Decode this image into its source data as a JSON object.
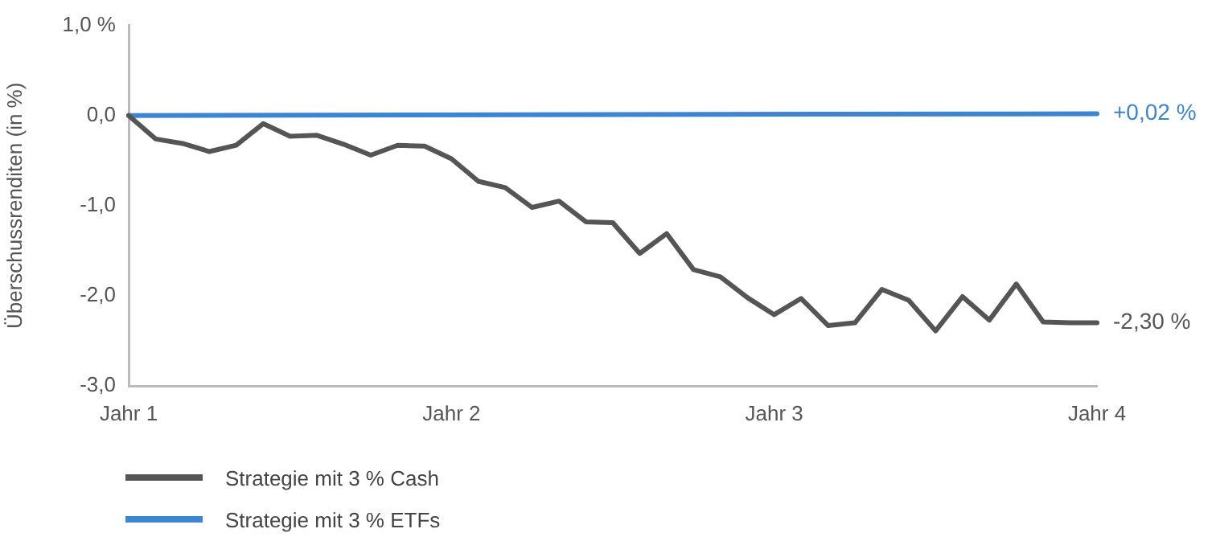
{
  "chart_data": {
    "type": "line",
    "ylabel": "Überschussrenditen (in %)",
    "categories": [
      "Jahr 1",
      null,
      null,
      null,
      null,
      null,
      null,
      null,
      null,
      null,
      null,
      null,
      "Jahr 2",
      null,
      null,
      null,
      null,
      null,
      null,
      null,
      null,
      null,
      null,
      null,
      "Jahr 3",
      null,
      null,
      null,
      null,
      null,
      null,
      null,
      null,
      null,
      null,
      null,
      "Jahr 4"
    ],
    "ylim": [
      -3,
      1
    ],
    "yticks": [
      {
        "value": 1,
        "label": "1,0 %"
      },
      {
        "value": 0,
        "label": "0,0"
      },
      {
        "value": -1,
        "label": "-1,0"
      },
      {
        "value": -2,
        "label": "-2,0"
      },
      {
        "value": -3,
        "label": "-3,0"
      }
    ],
    "grid": false,
    "legend": "bottom",
    "marker": "none",
    "line_style": "solid",
    "series": [
      {
        "name": "Strategie mit 3 % Cash",
        "color": "#555555",
        "values": [
          0,
          -0.26,
          -0.31,
          -0.4,
          -0.33,
          -0.09,
          -0.23,
          -0.22,
          -0.32,
          -0.44,
          -0.33,
          -0.34,
          -0.48,
          -0.73,
          -0.8,
          -1.02,
          -0.95,
          -1.18,
          -1.19,
          -1.53,
          -1.31,
          -1.71,
          -1.79,
          -2.02,
          -2.21,
          -2.03,
          -2.33,
          -2.3,
          -1.93,
          -2.05,
          -2.39,
          -2.01,
          -2.27,
          -1.87,
          -2.29,
          -2.3,
          -2.3
        ],
        "value_labels": [
          null,
          null,
          null,
          null,
          null,
          null,
          null,
          null,
          null,
          null,
          null,
          null,
          null,
          null,
          null,
          null,
          null,
          null,
          null,
          null,
          null,
          null,
          null,
          null,
          null,
          null,
          null,
          null,
          null,
          null,
          null,
          null,
          null,
          null,
          null,
          null,
          "-2,30 %"
        ]
      },
      {
        "name": "Strategie mit 3 % ETFs",
        "color": "#3d85d0",
        "values": [
          0,
          null,
          null,
          null,
          null,
          null,
          null,
          null,
          null,
          null,
          null,
          null,
          null,
          null,
          null,
          null,
          null,
          null,
          null,
          null,
          null,
          null,
          null,
          null,
          null,
          null,
          null,
          null,
          null,
          null,
          null,
          null,
          null,
          null,
          null,
          null,
          0.02
        ],
        "value_labels": [
          null,
          null,
          null,
          null,
          null,
          null,
          null,
          null,
          null,
          null,
          null,
          null,
          null,
          null,
          null,
          null,
          null,
          null,
          null,
          null,
          null,
          null,
          null,
          null,
          null,
          null,
          null,
          null,
          null,
          null,
          null,
          null,
          null,
          null,
          null,
          null,
          "+0,02 %"
        ]
      }
    ]
  }
}
